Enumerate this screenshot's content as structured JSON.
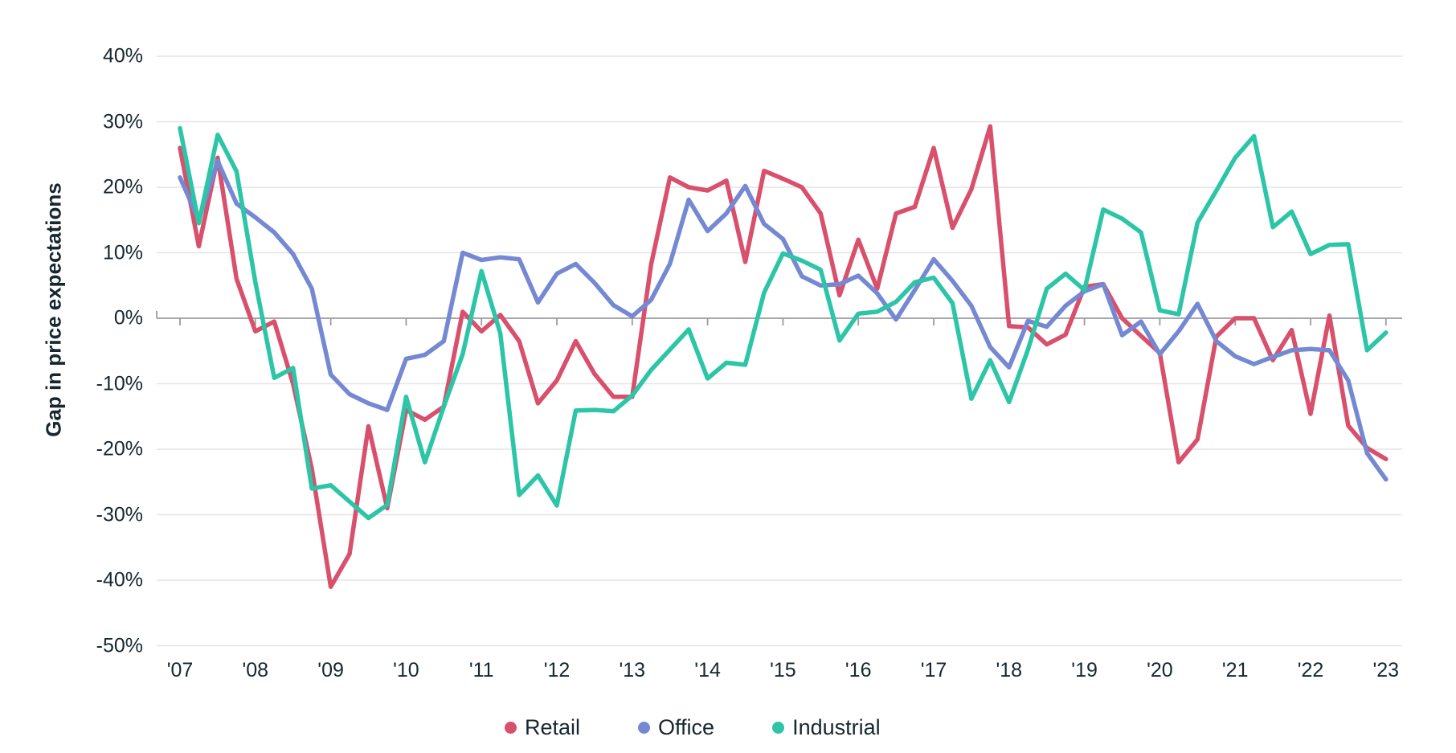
{
  "chart_data": {
    "type": "line",
    "title": "",
    "ylabel": "Gap in price expectations",
    "xlabel": "",
    "ylim": [
      -50,
      40
    ],
    "grid": "horizontal",
    "legend_position": "bottom",
    "x_unit": "quarterly, 2007Q1 - 2023Q1",
    "y_ticks": [
      {
        "label": "40%",
        "value": 40
      },
      {
        "label": "30%",
        "value": 30
      },
      {
        "label": "20%",
        "value": 20
      },
      {
        "label": "10%",
        "value": 10
      },
      {
        "label": "0%",
        "value": 0
      },
      {
        "label": "-10%",
        "value": -10
      },
      {
        "label": "-20%",
        "value": -20
      },
      {
        "label": "-30%",
        "value": -30
      },
      {
        "label": "-40%",
        "value": -40
      },
      {
        "label": "-50%",
        "value": -50
      }
    ],
    "x_ticks": [
      {
        "label": "'07",
        "year": 2007
      },
      {
        "label": "'08",
        "year": 2008
      },
      {
        "label": "'09",
        "year": 2009
      },
      {
        "label": "'10",
        "year": 2010
      },
      {
        "label": "'11",
        "year": 2011
      },
      {
        "label": "'12",
        "year": 2012
      },
      {
        "label": "'13",
        "year": 2013
      },
      {
        "label": "'14",
        "year": 2014
      },
      {
        "label": "'15",
        "year": 2015
      },
      {
        "label": "'16",
        "year": 2016
      },
      {
        "label": "'17",
        "year": 2017
      },
      {
        "label": "'18",
        "year": 2018
      },
      {
        "label": "'19",
        "year": 2019
      },
      {
        "label": "'20",
        "year": 2020
      },
      {
        "label": "'21",
        "year": 2021
      },
      {
        "label": "'22",
        "year": 2022
      },
      {
        "label": "'23",
        "year": 2023
      }
    ],
    "series": [
      {
        "name": "Retail",
        "color": "#d8506c",
        "start_year": 2007,
        "points_per_year": 4,
        "values": [
          26,
          11,
          24.5,
          6,
          -2,
          -0.5,
          -10,
          -23,
          -41,
          -36,
          -16.5,
          -29,
          -14,
          -15.5,
          -13.5,
          1,
          -2,
          0.5,
          -3.5,
          -13,
          -9.5,
          -3.5,
          -8.5,
          -12,
          -12,
          8.2,
          21.5,
          20,
          19.5,
          21,
          8.6,
          22.5,
          21.3,
          20,
          16,
          3.5,
          12,
          4.5,
          16,
          17,
          26,
          13.8,
          19.7,
          29.3,
          -1.2,
          -1.4,
          -4,
          -2.5,
          4.8,
          5.2,
          0,
          -2.7,
          -5.3,
          -22,
          -18.5,
          -2.8,
          0,
          0,
          -6.4,
          -1.8,
          -14.6,
          0.4,
          -16.4,
          -19.8,
          -21.5
        ]
      },
      {
        "name": "Office",
        "color": "#7589d3",
        "start_year": 2007,
        "points_per_year": 4,
        "values": [
          21.5,
          15,
          24,
          17.5,
          15.4,
          13.1,
          9.8,
          4.5,
          -8.6,
          -11.6,
          -13,
          -14,
          -6.2,
          -5.6,
          -3.5,
          10,
          8.9,
          9.3,
          9,
          2.4,
          6.8,
          8.3,
          5.4,
          2,
          0.3,
          2.8,
          8.3,
          18.1,
          13.3,
          16,
          20.2,
          14.4,
          12.1,
          6.4,
          5,
          5.2,
          6.5,
          3.8,
          -0.2,
          4.3,
          9,
          5.7,
          1.9,
          -4.4,
          -7.5,
          -0.4,
          -1.3,
          1.9,
          4.1,
          5.2,
          -2.6,
          -0.5,
          -5.5,
          -2,
          2.2,
          -3.5,
          -5.8,
          -7,
          -5.9,
          -4.9,
          -4.7,
          -4.9,
          -9.5,
          -20.6,
          -24.6
        ]
      },
      {
        "name": "Industrial",
        "color": "#2cc5a7",
        "start_year": 2007,
        "points_per_year": 4,
        "values": [
          29,
          14.5,
          28,
          22.4,
          5.5,
          -9.1,
          -7.6,
          -26,
          -25.5,
          -28,
          -30.5,
          -28.5,
          -12,
          -22,
          -13.5,
          -5.5,
          7.2,
          -2.3,
          -27,
          -24,
          -28.6,
          -14.1,
          -14,
          -14.2,
          -11.8,
          -7.9,
          -4.8,
          -1.7,
          -9.2,
          -6.8,
          -7.1,
          3.9,
          9.9,
          8.8,
          7.4,
          -3.4,
          0.7,
          1,
          2.5,
          5.5,
          6.2,
          2.3,
          -12.3,
          -6.4,
          -12.8,
          -4.8,
          4.5,
          6.8,
          4.3,
          16.6,
          15.2,
          13.1,
          1.2,
          0.6,
          14.6,
          19.5,
          24.5,
          27.8,
          13.9,
          16.3,
          9.8,
          11.2,
          11.3,
          -4.9,
          -2.2
        ]
      }
    ],
    "style": {
      "gridline_color": "#e4e4e7",
      "zero_axis_color": "#9b9ba1",
      "text_color": "#16272f",
      "background": "#ffffff",
      "line_width": 5.5
    }
  }
}
